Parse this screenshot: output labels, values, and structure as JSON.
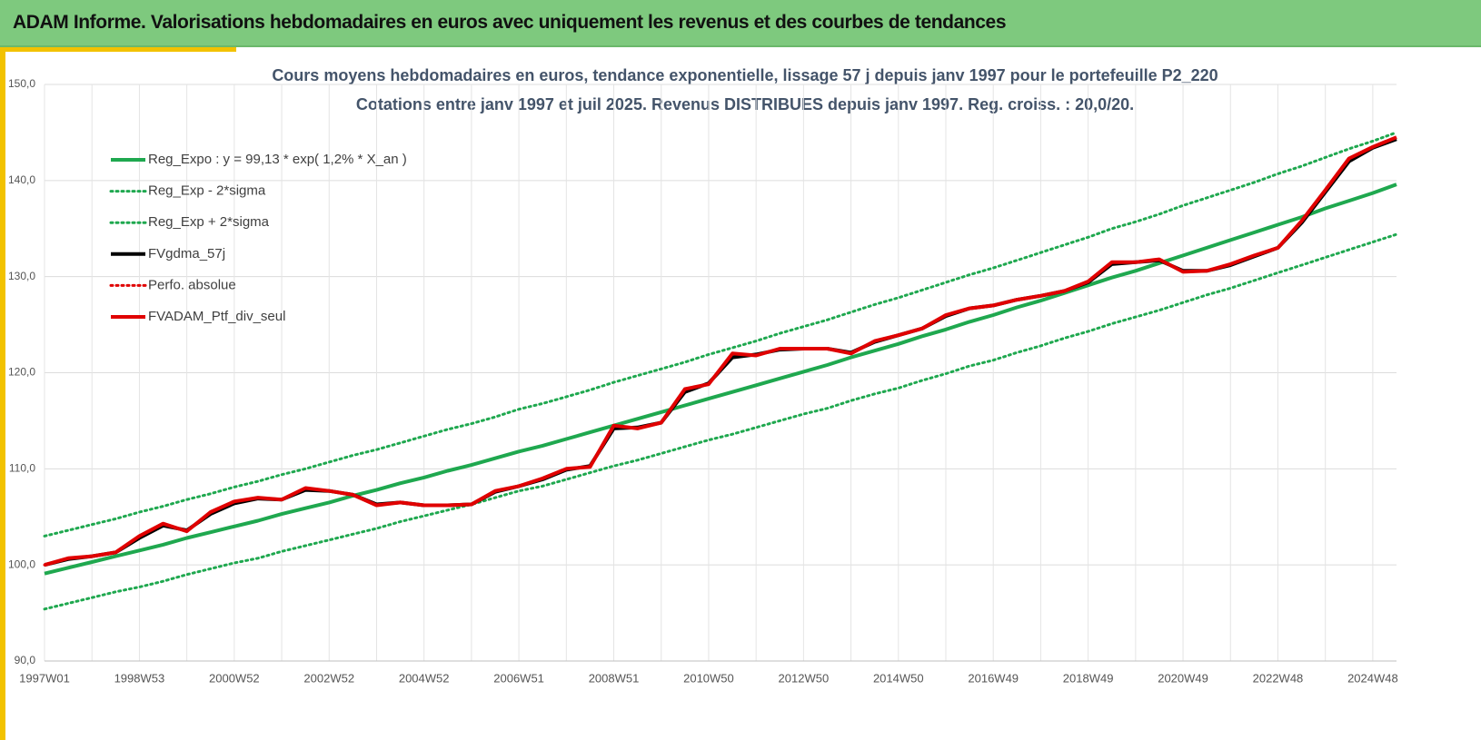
{
  "header": {
    "title": "ADAM Informe. Valorisations hebdomadaires en euros avec uniquement les revenus et des courbes de tendances"
  },
  "chart_data": {
    "type": "line",
    "title": "Cours moyens hebdomadaires  en euros, tendance exponentielle, lissage 57 j depuis janv 1997 pour le portefeuille P2_220",
    "subtitle": "Cotations entre janv 1997 et juil 2025. Revenus DISTRIBUES depuis janv 1997. Reg. croiss. : 20,0/20.",
    "categories": [
      "1997W01",
      null,
      null,
      null,
      "1998W53",
      null,
      null,
      null,
      "2000W52",
      null,
      null,
      null,
      "2002W52",
      null,
      null,
      null,
      "2004W52",
      null,
      null,
      null,
      "2006W51",
      null,
      null,
      null,
      "2008W51",
      null,
      null,
      null,
      "2010W50",
      null,
      null,
      null,
      "2012W50",
      null,
      null,
      null,
      "2014W50",
      null,
      null,
      null,
      "2016W49",
      null,
      null,
      null,
      "2018W49",
      null,
      null,
      null,
      "2020W49",
      null,
      null,
      null,
      "2022W48",
      null,
      null,
      null,
      "2024W48",
      null
    ],
    "ylim": [
      90,
      150
    ],
    "yticks": [
      {
        "value": 90,
        "label": "90,0"
      },
      {
        "value": 100,
        "label": "100,0"
      },
      {
        "value": 110,
        "label": "110,0"
      },
      {
        "value": 120,
        "label": "120,0"
      },
      {
        "value": 130,
        "label": "130,0"
      },
      {
        "value": 140,
        "label": "140,0"
      },
      {
        "value": 150,
        "label": "150,0"
      }
    ],
    "grid": true,
    "legend": "upper left",
    "series": [
      {
        "name": "Reg_Expo : y = 99,13 * exp( 1,2% *  X_an )",
        "color": "#1fa84f",
        "dash": "solid",
        "width": 4,
        "values": [
          99.1,
          99.7,
          100.3,
          100.9,
          101.5,
          102.1,
          102.8,
          103.4,
          104.0,
          104.6,
          105.3,
          105.9,
          106.5,
          107.2,
          107.8,
          108.5,
          109.1,
          109.8,
          110.4,
          111.1,
          111.8,
          112.4,
          113.1,
          113.8,
          114.5,
          115.2,
          115.9,
          116.6,
          117.3,
          118.0,
          118.7,
          119.4,
          120.1,
          120.8,
          121.6,
          122.3,
          123.0,
          123.8,
          124.5,
          125.3,
          126.0,
          126.8,
          127.5,
          128.3,
          129.1,
          129.9,
          130.6,
          131.4,
          132.2,
          133.0,
          133.8,
          134.6,
          135.4,
          136.2,
          137.1,
          137.9,
          138.7,
          139.6
        ]
      },
      {
        "name": "Reg_Exp - 2*sigma",
        "color": "#1fa84f",
        "dash": "dotted",
        "width": 3,
        "values": [
          95.4,
          96.0,
          96.6,
          97.2,
          97.7,
          98.3,
          99.0,
          99.6,
          100.2,
          100.7,
          101.4,
          102.0,
          102.6,
          103.2,
          103.8,
          104.5,
          105.1,
          105.7,
          106.3,
          107.0,
          107.7,
          108.2,
          108.9,
          109.6,
          110.3,
          110.9,
          111.6,
          112.3,
          113.0,
          113.6,
          114.3,
          115.0,
          115.7,
          116.3,
          117.1,
          117.8,
          118.4,
          119.2,
          119.9,
          120.7,
          121.3,
          122.1,
          122.8,
          123.6,
          124.3,
          125.1,
          125.8,
          126.5,
          127.3,
          128.1,
          128.8,
          129.6,
          130.4,
          131.2,
          132.0,
          132.8,
          133.6,
          134.4
        ]
      },
      {
        "name": "Reg_Exp + 2*sigma",
        "color": "#1fa84f",
        "dash": "dotted",
        "width": 3,
        "values": [
          103.0,
          103.6,
          104.2,
          104.8,
          105.5,
          106.1,
          106.8,
          107.4,
          108.1,
          108.7,
          109.4,
          110.0,
          110.7,
          111.4,
          112.0,
          112.7,
          113.4,
          114.1,
          114.7,
          115.4,
          116.2,
          116.8,
          117.5,
          118.2,
          119.0,
          119.7,
          120.4,
          121.1,
          121.9,
          122.6,
          123.3,
          124.1,
          124.8,
          125.5,
          126.3,
          127.1,
          127.8,
          128.6,
          129.4,
          130.2,
          130.9,
          131.7,
          132.5,
          133.3,
          134.1,
          135.0,
          135.7,
          136.5,
          137.4,
          138.2,
          139.0,
          139.8,
          140.7,
          141.5,
          142.4,
          143.3,
          144.1,
          145.0
        ]
      },
      {
        "name": "FVgdma_57j",
        "color": "#000000",
        "dash": "solid",
        "width": 4,
        "values": [
          100.0,
          100.6,
          100.9,
          101.3,
          102.8,
          104.1,
          103.6,
          105.3,
          106.4,
          106.9,
          106.8,
          107.8,
          107.7,
          107.3,
          106.3,
          106.5,
          106.2,
          106.2,
          106.3,
          107.6,
          108.2,
          108.9,
          109.9,
          110.3,
          114.2,
          114.3,
          114.8,
          118.0,
          118.9,
          121.6,
          121.9,
          122.4,
          122.5,
          122.5,
          122.1,
          123.2,
          123.9,
          124.6,
          125.9,
          126.7,
          127.0,
          127.6,
          128.0,
          128.5,
          129.4,
          131.3,
          131.5,
          131.7,
          130.6,
          130.6,
          131.2,
          132.1,
          133.0,
          135.6,
          138.8,
          142.0,
          143.4,
          144.3
        ]
      },
      {
        "name": "Perfo. absolue",
        "color": "#e00000",
        "dash": "dotted",
        "width": 3,
        "values": [
          100.0,
          100.7,
          100.9,
          101.3,
          103.0,
          104.3,
          103.5,
          105.5,
          106.6,
          107.0,
          106.8,
          108.0,
          107.7,
          107.3,
          106.2,
          106.5,
          106.2,
          106.2,
          106.3,
          107.7,
          108.2,
          109.0,
          110.0,
          110.2,
          114.5,
          114.2,
          114.8,
          118.3,
          118.8,
          122.0,
          121.8,
          122.5,
          122.5,
          122.5,
          122.0,
          123.3,
          123.9,
          124.6,
          126.0,
          126.7,
          127.0,
          127.6,
          128.0,
          128.5,
          129.5,
          131.5,
          131.5,
          131.8,
          130.5,
          130.6,
          131.3,
          132.2,
          133.0,
          135.8,
          139.0,
          142.3,
          143.5,
          144.5
        ]
      },
      {
        "name": "FVADAM_Ptf_div_seul",
        "color": "#e00000",
        "dash": "solid",
        "width": 4,
        "values": [
          100.0,
          100.7,
          100.9,
          101.3,
          103.0,
          104.3,
          103.5,
          105.5,
          106.6,
          107.0,
          106.8,
          108.0,
          107.7,
          107.3,
          106.2,
          106.5,
          106.2,
          106.2,
          106.3,
          107.7,
          108.2,
          109.0,
          110.0,
          110.2,
          114.5,
          114.2,
          114.8,
          118.3,
          118.8,
          122.0,
          121.8,
          122.5,
          122.5,
          122.5,
          122.0,
          123.3,
          123.9,
          124.6,
          126.0,
          126.7,
          127.0,
          127.6,
          128.0,
          128.5,
          129.5,
          131.5,
          131.5,
          131.8,
          130.5,
          130.6,
          131.3,
          132.2,
          133.0,
          135.8,
          139.0,
          142.3,
          143.5,
          144.5
        ]
      }
    ]
  }
}
